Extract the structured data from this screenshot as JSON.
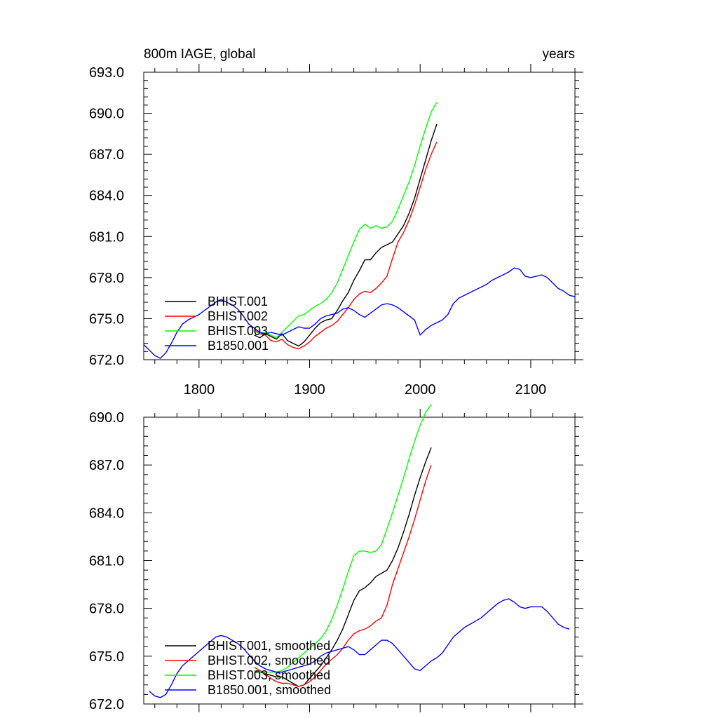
{
  "chart_data": [
    {
      "type": "line",
      "title": "800m IAGE, global",
      "right_title": "years",
      "xlim": [
        1750,
        2140
      ],
      "ylim": [
        672,
        693
      ],
      "xticks": [
        1800,
        1900,
        2000,
        2100
      ],
      "xtick_labels": [
        "1800",
        "1900",
        "2000",
        "2100"
      ],
      "yticks": [
        672,
        675,
        678,
        681,
        684,
        687,
        690,
        693
      ],
      "ytick_labels": [
        "672.0",
        "675.0",
        "678.0",
        "681.0",
        "684.0",
        "687.0",
        "690.0",
        "693.0"
      ],
      "grid": false,
      "legend_position": "bottom-left",
      "series": [
        {
          "name": "BHIST.001",
          "color": "#000000",
          "x": [
            1850,
            1855,
            1860,
            1865,
            1870,
            1875,
            1880,
            1885,
            1890,
            1895,
            1900,
            1905,
            1910,
            1915,
            1920,
            1925,
            1930,
            1935,
            1940,
            1945,
            1950,
            1955,
            1960,
            1965,
            1970,
            1975,
            1980,
            1985,
            1990,
            1995,
            2000,
            2005,
            2010,
            2015
          ],
          "values": [
            673.8,
            673.6,
            673.9,
            673.7,
            673.5,
            673.9,
            673.4,
            673.2,
            673.0,
            673.3,
            673.8,
            674.3,
            674.7,
            674.9,
            675.0,
            675.6,
            676.3,
            676.9,
            677.8,
            678.5,
            679.3,
            679.3,
            679.8,
            680.2,
            680.4,
            680.6,
            681.2,
            681.8,
            682.7,
            683.8,
            685.2,
            686.6,
            688.0,
            689.2
          ]
        },
        {
          "name": "BHIST.002",
          "color": "#ff0000",
          "x": [
            1850,
            1855,
            1860,
            1865,
            1870,
            1875,
            1880,
            1885,
            1890,
            1895,
            1900,
            1905,
            1910,
            1915,
            1920,
            1925,
            1930,
            1935,
            1940,
            1945,
            1950,
            1955,
            1960,
            1965,
            1970,
            1975,
            1980,
            1985,
            1990,
            1995,
            2000,
            2005,
            2010,
            2015
          ],
          "values": [
            674.2,
            673.9,
            673.8,
            673.4,
            673.3,
            673.5,
            673.1,
            672.9,
            672.8,
            673.0,
            673.3,
            673.7,
            674.0,
            674.3,
            674.5,
            674.8,
            675.3,
            675.8,
            676.4,
            676.8,
            677.0,
            676.9,
            677.2,
            677.6,
            678.1,
            679.4,
            680.6,
            681.3,
            682.2,
            683.3,
            684.6,
            685.9,
            687.0,
            687.9
          ]
        },
        {
          "name": "BHIST.003",
          "color": "#00ff00",
          "x": [
            1850,
            1855,
            1860,
            1865,
            1870,
            1875,
            1880,
            1885,
            1890,
            1895,
            1900,
            1905,
            1910,
            1915,
            1920,
            1925,
            1930,
            1935,
            1940,
            1945,
            1950,
            1955,
            1960,
            1965,
            1970,
            1975,
            1980,
            1985,
            1990,
            1995,
            2000,
            2005,
            2010,
            2015
          ],
          "values": [
            674.1,
            673.9,
            674.0,
            673.8,
            673.6,
            674.0,
            674.4,
            674.8,
            675.2,
            675.3,
            675.6,
            675.9,
            676.1,
            676.4,
            676.9,
            677.6,
            678.6,
            679.6,
            680.6,
            681.5,
            681.9,
            681.6,
            681.8,
            681.6,
            681.7,
            682.1,
            683.0,
            684.0,
            685.0,
            686.2,
            687.6,
            688.9,
            690.1,
            690.8
          ]
        },
        {
          "name": "B1850.001",
          "color": "#0000ff",
          "x": [
            1750,
            1755,
            1760,
            1765,
            1770,
            1775,
            1780,
            1785,
            1790,
            1795,
            1800,
            1805,
            1810,
            1815,
            1820,
            1825,
            1830,
            1835,
            1840,
            1845,
            1850,
            1855,
            1860,
            1865,
            1870,
            1875,
            1880,
            1885,
            1890,
            1895,
            1900,
            1905,
            1910,
            1915,
            1920,
            1925,
            1930,
            1935,
            1940,
            1945,
            1950,
            1955,
            1960,
            1965,
            1970,
            1975,
            1980,
            1985,
            1990,
            1995,
            2000,
            2005,
            2010,
            2015,
            2020,
            2025,
            2030,
            2035,
            2040,
            2045,
            2050,
            2055,
            2060,
            2065,
            2070,
            2075,
            2080,
            2085,
            2090,
            2095,
            2100,
            2105,
            2110,
            2115,
            2120,
            2125,
            2130,
            2135,
            2140
          ],
          "values": [
            673.1,
            672.7,
            672.3,
            672.1,
            672.5,
            673.2,
            674.0,
            674.6,
            674.9,
            675.1,
            675.3,
            675.6,
            675.9,
            676.2,
            676.4,
            676.2,
            676.0,
            675.7,
            675.2,
            674.6,
            674.3,
            674.0,
            673.9,
            674.0,
            673.9,
            673.8,
            674.0,
            674.2,
            674.4,
            674.3,
            674.3,
            674.6,
            675.0,
            675.2,
            675.3,
            675.4,
            675.7,
            675.8,
            675.6,
            675.3,
            675.1,
            675.4,
            675.7,
            676.0,
            676.1,
            676.0,
            675.8,
            675.5,
            675.2,
            674.9,
            673.8,
            674.2,
            674.5,
            674.7,
            674.9,
            675.3,
            676.1,
            676.5,
            676.7,
            676.9,
            677.1,
            677.3,
            677.5,
            677.8,
            678.0,
            678.2,
            678.4,
            678.7,
            678.6,
            678.1,
            678.0,
            678.1,
            678.2,
            678.0,
            677.6,
            677.2,
            677.0,
            676.7,
            676.6
          ]
        }
      ]
    },
    {
      "type": "line",
      "xlim": [
        1750,
        2140
      ],
      "ylim": [
        672,
        690
      ],
      "xticks": [
        1800,
        1900,
        2000,
        2100
      ],
      "yticks": [
        672,
        675,
        678,
        681,
        684,
        687,
        690
      ],
      "ytick_labels": [
        "672.0",
        "675.0",
        "678.0",
        "681.0",
        "684.0",
        "687.0",
        "690.0"
      ],
      "grid": false,
      "legend_position": "bottom-left",
      "series": [
        {
          "name": "BHIST.001, smoothed",
          "color": "#000000",
          "x": [
            1850,
            1855,
            1860,
            1865,
            1870,
            1875,
            1880,
            1885,
            1890,
            1895,
            1900,
            1905,
            1910,
            1915,
            1920,
            1925,
            1930,
            1935,
            1940,
            1945,
            1950,
            1955,
            1960,
            1965,
            1970,
            1975,
            1980,
            1985,
            1990,
            1995,
            2000,
            2005,
            2010
          ],
          "values": [
            674.0,
            674.0,
            673.9,
            673.8,
            673.7,
            673.7,
            673.5,
            673.3,
            673.1,
            673.2,
            673.6,
            674.0,
            674.4,
            674.9,
            675.4,
            676.0,
            676.7,
            677.6,
            678.5,
            679.1,
            679.3,
            679.6,
            680.0,
            680.2,
            680.4,
            681.0,
            681.8,
            682.8,
            683.9,
            685.1,
            686.2,
            687.2,
            688.1
          ]
        },
        {
          "name": "BHIST.002, smoothed",
          "color": "#ff0000",
          "x": [
            1850,
            1855,
            1860,
            1865,
            1870,
            1875,
            1880,
            1885,
            1890,
            1895,
            1900,
            1905,
            1910,
            1915,
            1920,
            1925,
            1930,
            1935,
            1940,
            1945,
            1950,
            1955,
            1960,
            1965,
            1970,
            1975,
            1980,
            1985,
            1990,
            1995,
            2000,
            2005,
            2010
          ],
          "values": [
            674.3,
            674.1,
            673.9,
            673.6,
            673.4,
            673.3,
            673.3,
            673.2,
            673.1,
            673.2,
            673.4,
            673.7,
            674.1,
            674.5,
            674.8,
            675.1,
            675.5,
            676.0,
            676.4,
            676.6,
            676.7,
            676.9,
            677.2,
            677.4,
            678.2,
            679.5,
            680.5,
            681.5,
            682.5,
            683.6,
            684.8,
            686.0,
            687.0
          ]
        },
        {
          "name": "BHIST.003, smoothed",
          "color": "#00ff00",
          "x": [
            1850,
            1855,
            1860,
            1865,
            1870,
            1875,
            1880,
            1885,
            1890,
            1895,
            1900,
            1905,
            1910,
            1915,
            1920,
            1925,
            1930,
            1935,
            1940,
            1945,
            1950,
            1955,
            1960,
            1965,
            1970,
            1975,
            1980,
            1985,
            1990,
            1995,
            2000,
            2005,
            2010
          ],
          "values": [
            674.1,
            674.0,
            674.0,
            674.0,
            674.0,
            674.1,
            674.3,
            674.6,
            674.9,
            675.2,
            675.5,
            675.8,
            676.1,
            676.6,
            677.3,
            678.2,
            679.2,
            680.3,
            681.3,
            681.6,
            681.6,
            681.5,
            681.6,
            682.0,
            683.0,
            684.0,
            685.1,
            686.2,
            687.4,
            688.5,
            689.5,
            690.3,
            690.8
          ]
        },
        {
          "name": "B1850.001, smoothed",
          "color": "#0000ff",
          "x": [
            1755,
            1760,
            1765,
            1770,
            1775,
            1780,
            1785,
            1790,
            1795,
            1800,
            1805,
            1810,
            1815,
            1820,
            1825,
            1830,
            1835,
            1840,
            1845,
            1850,
            1855,
            1860,
            1865,
            1870,
            1875,
            1880,
            1885,
            1890,
            1895,
            1900,
            1905,
            1910,
            1915,
            1920,
            1925,
            1930,
            1935,
            1940,
            1945,
            1950,
            1955,
            1960,
            1965,
            1970,
            1975,
            1980,
            1985,
            1990,
            1995,
            2000,
            2005,
            2010,
            2015,
            2020,
            2025,
            2030,
            2035,
            2040,
            2045,
            2050,
            2055,
            2060,
            2065,
            2070,
            2075,
            2080,
            2085,
            2090,
            2095,
            2100,
            2105,
            2110,
            2115,
            2120,
            2125,
            2130,
            2135
          ],
          "values": [
            672.8,
            672.5,
            672.4,
            672.6,
            673.2,
            673.9,
            674.4,
            674.7,
            675.0,
            675.3,
            675.6,
            675.9,
            676.2,
            676.3,
            676.2,
            676.0,
            675.8,
            675.5,
            675.1,
            674.7,
            674.4,
            674.2,
            674.1,
            674.0,
            674.0,
            674.1,
            674.2,
            674.3,
            674.4,
            674.5,
            674.7,
            675.0,
            675.2,
            675.3,
            675.4,
            675.5,
            675.6,
            675.4,
            675.1,
            675.1,
            675.4,
            675.7,
            676.0,
            676.0,
            675.8,
            675.4,
            675.0,
            674.6,
            674.2,
            674.1,
            674.4,
            674.7,
            674.9,
            675.2,
            675.7,
            676.2,
            676.5,
            676.8,
            677.0,
            677.2,
            677.4,
            677.7,
            678.0,
            678.3,
            678.5,
            678.6,
            678.4,
            678.1,
            678.0,
            678.1,
            678.1,
            678.1,
            677.8,
            677.4,
            677.0,
            676.8,
            676.7
          ]
        }
      ]
    }
  ]
}
